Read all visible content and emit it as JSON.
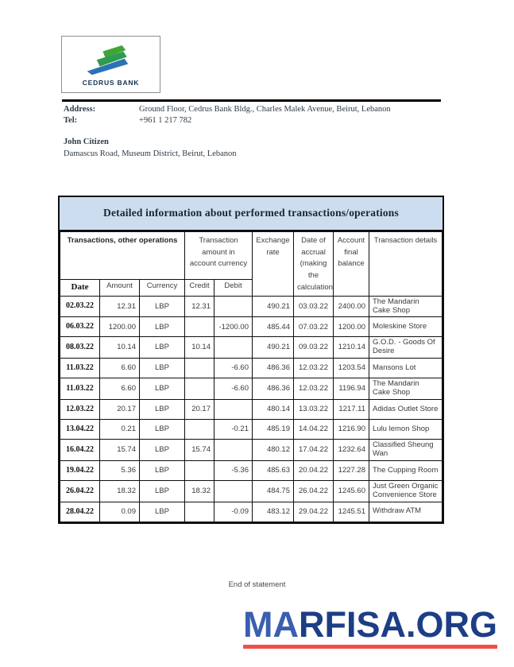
{
  "bank": {
    "name": "CEDRUS BANK",
    "logo_colors": {
      "stripe_top": "#41a437",
      "stripe_mid": "#2f9b51",
      "stripe_bottom": "#2b73b5",
      "name_color": "#16324f"
    }
  },
  "contact": {
    "address_label": "Address:",
    "address_value": "Ground Floor, Cedrus Bank Bldg., Charles Malek Avenue, Beirut, Lebanon",
    "tel_label": "Tel:",
    "tel_value": "+961 1 217 782"
  },
  "customer": {
    "name": "John Citizen",
    "address": "Damascus Road, Museum District, Beirut, Lebanon"
  },
  "statement": {
    "title": "Detailed information about performed transactions/operations",
    "title_bg": "#cdddf0",
    "header": {
      "group_transactions": "Transactions, other operations",
      "group_amount": "Transaction amount in account currency",
      "exchange_rate": "Exchange rate",
      "date_accrual": "Date of accrual (making the calculation)",
      "account_balance": "Account final balance",
      "details": "Transaction details",
      "sub_date": "Date",
      "sub_amount": "Amount",
      "sub_currency": "Currency",
      "sub_credit": "Credit",
      "sub_debit": "Debit"
    },
    "field_order": [
      "date",
      "amount",
      "currency",
      "credit",
      "debit",
      "rate",
      "accrual",
      "balance",
      "details"
    ],
    "rows": [
      {
        "date": "02.03.22",
        "amount": "12.31",
        "currency": "LBP",
        "credit": "12.31",
        "debit": "",
        "rate": "490.21",
        "accrual": "03.03.22",
        "balance": "2400.00",
        "details": "The Mandarin Cake Shop"
      },
      {
        "date": "06.03.22",
        "amount": "1200.00",
        "currency": "LBP",
        "credit": "",
        "debit": "-1200.00",
        "rate": "485.44",
        "accrual": "07.03.22",
        "balance": "1200.00",
        "details": "Moleskine Store"
      },
      {
        "date": "08.03.22",
        "amount": "10.14",
        "currency": "LBP",
        "credit": "10.14",
        "debit": "",
        "rate": "490.21",
        "accrual": "09.03.22",
        "balance": "1210.14",
        "details": "G.O.D. - Goods Of Desire"
      },
      {
        "date": "11.03.22",
        "amount": "6.60",
        "currency": "LBP",
        "credit": "",
        "debit": "-6.60",
        "rate": "486.36",
        "accrual": "12.03.22",
        "balance": "1203.54",
        "details": "Mansons Lot"
      },
      {
        "date": "11.03.22",
        "amount": "6.60",
        "currency": "LBP",
        "credit": "",
        "debit": "-6.60",
        "rate": "486.36",
        "accrual": "12.03.22",
        "balance": "1196.94",
        "details": "The Mandarin Cake Shop"
      },
      {
        "date": "12.03.22",
        "amount": "20.17",
        "currency": "LBP",
        "credit": "20.17",
        "debit": "",
        "rate": "480.14",
        "accrual": "13.03.22",
        "balance": "1217.11",
        "details": "Adidas Outlet Store"
      },
      {
        "date": "13.04.22",
        "amount": "0.21",
        "currency": "LBP",
        "credit": "",
        "debit": "-0.21",
        "rate": "485.19",
        "accrual": "14.04.22",
        "balance": "1216.90",
        "details": "Lulu lemon Shop"
      },
      {
        "date": "16.04.22",
        "amount": "15.74",
        "currency": "LBP",
        "credit": "15.74",
        "debit": "",
        "rate": "480.12",
        "accrual": "17.04.22",
        "balance": "1232.64",
        "details": "Classified Sheung Wan"
      },
      {
        "date": "19.04.22",
        "amount": "5.36",
        "currency": "LBP",
        "credit": "",
        "debit": "-5.36",
        "rate": "485.63",
        "accrual": "20.04.22",
        "balance": "1227.28",
        "details": "The Cupping Room"
      },
      {
        "date": "26.04.22",
        "amount": "18.32",
        "currency": "LBP",
        "credit": "18.32",
        "debit": "",
        "rate": "484.75",
        "accrual": "26.04.22",
        "balance": "1245.60",
        "details": "Just Green Organic Convenience Store"
      },
      {
        "date": "28.04.22",
        "amount": "0.09",
        "currency": "LBP",
        "credit": "",
        "debit": "-0.09",
        "rate": "483.12",
        "accrual": "29.04.22",
        "balance": "1245.51",
        "details": "Withdraw ATM"
      }
    ],
    "end_text": "End of statement"
  },
  "footer_brand": {
    "text_light": "MA",
    "text_dark": "RFISA.ORG",
    "color_light": "#3b5fae",
    "color_dark": "#1d3e86",
    "underline_color": "#ee5049"
  }
}
